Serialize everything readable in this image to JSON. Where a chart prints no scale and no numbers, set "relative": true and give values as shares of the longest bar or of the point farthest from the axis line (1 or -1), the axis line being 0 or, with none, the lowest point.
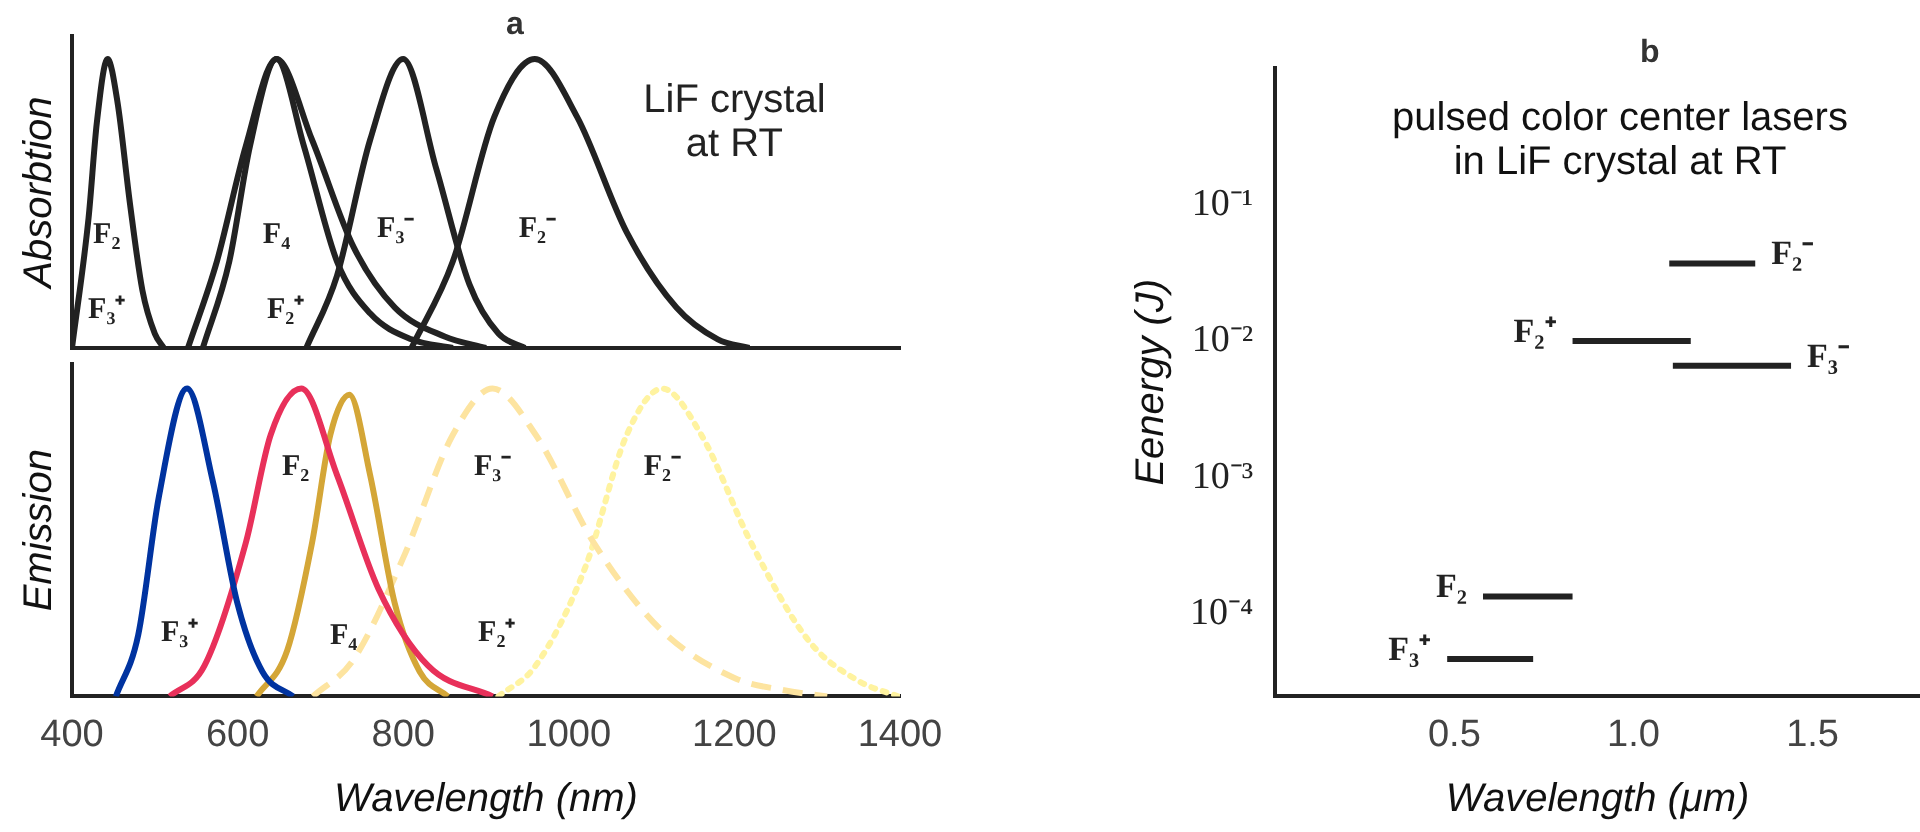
{
  "chart_data": [
    {
      "type": "line",
      "title": "a",
      "ylabel": "Absorbtion",
      "relative": true,
      "xlim": [
        400,
        1400
      ],
      "tick_labels": false,
      "grid": false,
      "legend": false,
      "marker": "none",
      "annotations": [
        "LiF crystal\nat RT",
        "F₂",
        "F₃⁺",
        "F₄",
        "F₂⁺",
        "F₃⁻",
        "F₂⁻"
      ],
      "series": [
        {
          "color": "#222222",
          "line_style": "solid",
          "x": [
            400,
            420,
            430,
            443,
            455,
            470,
            485,
            500,
            511
          ],
          "values": [
            0,
            0.45,
            0.78,
            1,
            0.85,
            0.5,
            0.2,
            0.05,
            0
          ]
        },
        {
          "color": "#222222",
          "line_style": "solid",
          "x": [
            558,
            590,
            615,
            647,
            680,
            720,
            760,
            810,
            860
          ],
          "values": [
            0,
            0.3,
            0.7,
            1,
            0.7,
            0.3,
            0.12,
            0.03,
            0
          ]
        },
        {
          "color": "#222222",
          "line_style": "solid",
          "x": [
            540,
            575,
            610,
            647,
            690,
            740,
            790,
            850,
            900
          ],
          "values": [
            0,
            0.3,
            0.7,
            1,
            0.72,
            0.35,
            0.14,
            0.04,
            0
          ]
        },
        {
          "color": "#222222",
          "line_style": "solid",
          "x": [
            683,
            720,
            760,
            800,
            840,
            880,
            915,
            947
          ],
          "values": [
            0,
            0.25,
            0.72,
            1,
            0.62,
            0.22,
            0.05,
            0
          ]
        },
        {
          "color": "#222222",
          "line_style": "solid",
          "x": [
            810,
            860,
            910,
            959,
            1010,
            1070,
            1130,
            1180,
            1218
          ],
          "values": [
            0,
            0.3,
            0.8,
            1,
            0.8,
            0.4,
            0.14,
            0.03,
            0
          ]
        }
      ]
    },
    {
      "type": "line",
      "xlabel": "Wavelength (nm)",
      "ylabel": "Emission",
      "relative": true,
      "xlim": [
        400,
        1400
      ],
      "xticks": [
        400,
        600,
        800,
        1000,
        1200,
        1400
      ],
      "tick_labels": "x",
      "grid": false,
      "legend": false,
      "marker": "none",
      "annotations": [
        "F₂",
        "F₃⁺",
        "F₄",
        "F₃⁻",
        "F₂⁺",
        "F₂⁻"
      ],
      "series": [
        {
          "color": "#0033a0",
          "line_style": "solid",
          "x": [
            453,
            480,
            505,
            539,
            570,
            600,
            630,
            667
          ],
          "values": [
            0,
            0.2,
            0.65,
            1,
            0.7,
            0.3,
            0.08,
            0
          ]
        },
        {
          "color": "#e8305a",
          "line_style": "solid",
          "x": [
            518,
            560,
            610,
            640,
            677,
            720,
            770,
            830,
            908
          ],
          "values": [
            0,
            0.1,
            0.5,
            0.85,
            1,
            0.72,
            0.35,
            0.1,
            0
          ]
        },
        {
          "color": "#d4a637",
          "line_style": "solid",
          "x": [
            623,
            660,
            690,
            712,
            735,
            760,
            790,
            820,
            854
          ],
          "values": [
            0,
            0.15,
            0.5,
            0.85,
            0.98,
            0.72,
            0.3,
            0.08,
            0
          ]
        },
        {
          "color": "#fde4a0",
          "line_style": "dashed",
          "x": [
            691,
            740,
            800,
            860,
            908,
            960,
            1030,
            1110,
            1200,
            1260,
            1312
          ],
          "values": [
            0,
            0.12,
            0.45,
            0.85,
            1,
            0.85,
            0.5,
            0.22,
            0.06,
            0.02,
            0
          ]
        },
        {
          "color": "#fff3a0",
          "line_style": "dotted",
          "x": [
            915,
            960,
            1020,
            1070,
            1113,
            1160,
            1220,
            1290,
            1350,
            1398
          ],
          "values": [
            0,
            0.1,
            0.42,
            0.85,
            1,
            0.85,
            0.5,
            0.18,
            0.05,
            0
          ]
        }
      ]
    },
    {
      "type": "line",
      "title": "b",
      "subtitle": "pulsed color center lasers\nin LiF crystal at RT",
      "xlabel": "Wavelength (μm)",
      "ylabel": "Eenergy (J)",
      "log": "y",
      "xlim": [
        0,
        1.8
      ],
      "ylim": [
        2.5e-05,
        1
      ],
      "xticks": [
        0.5,
        {
          "value": 1,
          "label": "1.0"
        },
        1.5
      ],
      "yticks": [
        {
          "value": 0.0001,
          "label": "10⁻⁴"
        },
        {
          "value": 0.001,
          "label": "10⁻³"
        },
        {
          "value": 0.01,
          "label": "10⁻²"
        },
        {
          "value": 0.1,
          "label": "10⁻¹"
        }
      ],
      "grid": false,
      "legend": false,
      "marker": "none",
      "series": [
        {
          "name": "F₂⁻",
          "color": "#222222",
          "line_style": "solid",
          "x": [
            1.1,
            1.34
          ],
          "values": [
            0.037,
            0.037
          ]
        },
        {
          "name": "F₂⁺",
          "color": "#222222",
          "line_style": "solid",
          "x": [
            0.83,
            1.16
          ],
          "values": [
            0.01,
            0.01
          ]
        },
        {
          "name": "F₃⁻",
          "color": "#222222",
          "line_style": "solid",
          "x": [
            1.11,
            1.44
          ],
          "values": [
            0.0066,
            0.0066
          ]
        },
        {
          "name": "F₂",
          "color": "#222222",
          "line_style": "solid",
          "x": [
            0.58,
            0.83
          ],
          "values": [
            0.000135,
            0.000135
          ]
        },
        {
          "name": "F₃⁺",
          "color": "#222222",
          "line_style": "solid",
          "x": [
            0.48,
            0.72
          ],
          "values": [
            4.7e-05,
            4.7e-05
          ]
        }
      ]
    }
  ]
}
